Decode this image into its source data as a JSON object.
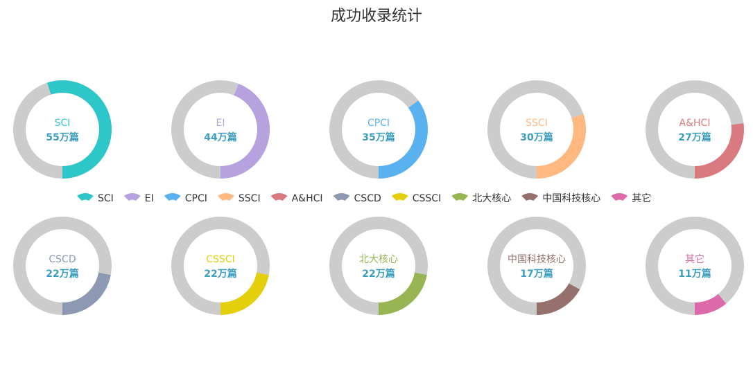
{
  "chart_data": {
    "type": "pie",
    "title": "成功收录统计",
    "track_color": "#cccccc",
    "value_color": "#3c9ebe",
    "ring_full_scale": 100,
    "unit": "万篇",
    "series": [
      {
        "name": "SCI",
        "value": 55,
        "color": "#2ec7c9"
      },
      {
        "name": "EI",
        "value": 44,
        "color": "#b6a2de"
      },
      {
        "name": "CPCI",
        "value": 35,
        "color": "#5ab1ef"
      },
      {
        "name": "SSCI",
        "value": 30,
        "color": "#ffb980"
      },
      {
        "name": "A&HCI",
        "value": 27,
        "color": "#d87a80"
      },
      {
        "name": "CSCD",
        "value": 22,
        "color": "#8d98b3"
      },
      {
        "name": "CSSCI",
        "value": 22,
        "color": "#e5cf0d"
      },
      {
        "name": "北大核心",
        "value": 22,
        "color": "#97b552"
      },
      {
        "name": "中国科技核心",
        "value": 17,
        "color": "#95706d"
      },
      {
        "name": "其它",
        "value": 11,
        "color": "#dc69aa"
      }
    ],
    "value_labels": [
      "55万篇",
      "44万篇",
      "35万篇",
      "30万篇",
      "27万篇",
      "22万篇",
      "22万篇",
      "22万篇",
      "17万篇",
      "11万篇"
    ],
    "legend_placement": "center"
  }
}
